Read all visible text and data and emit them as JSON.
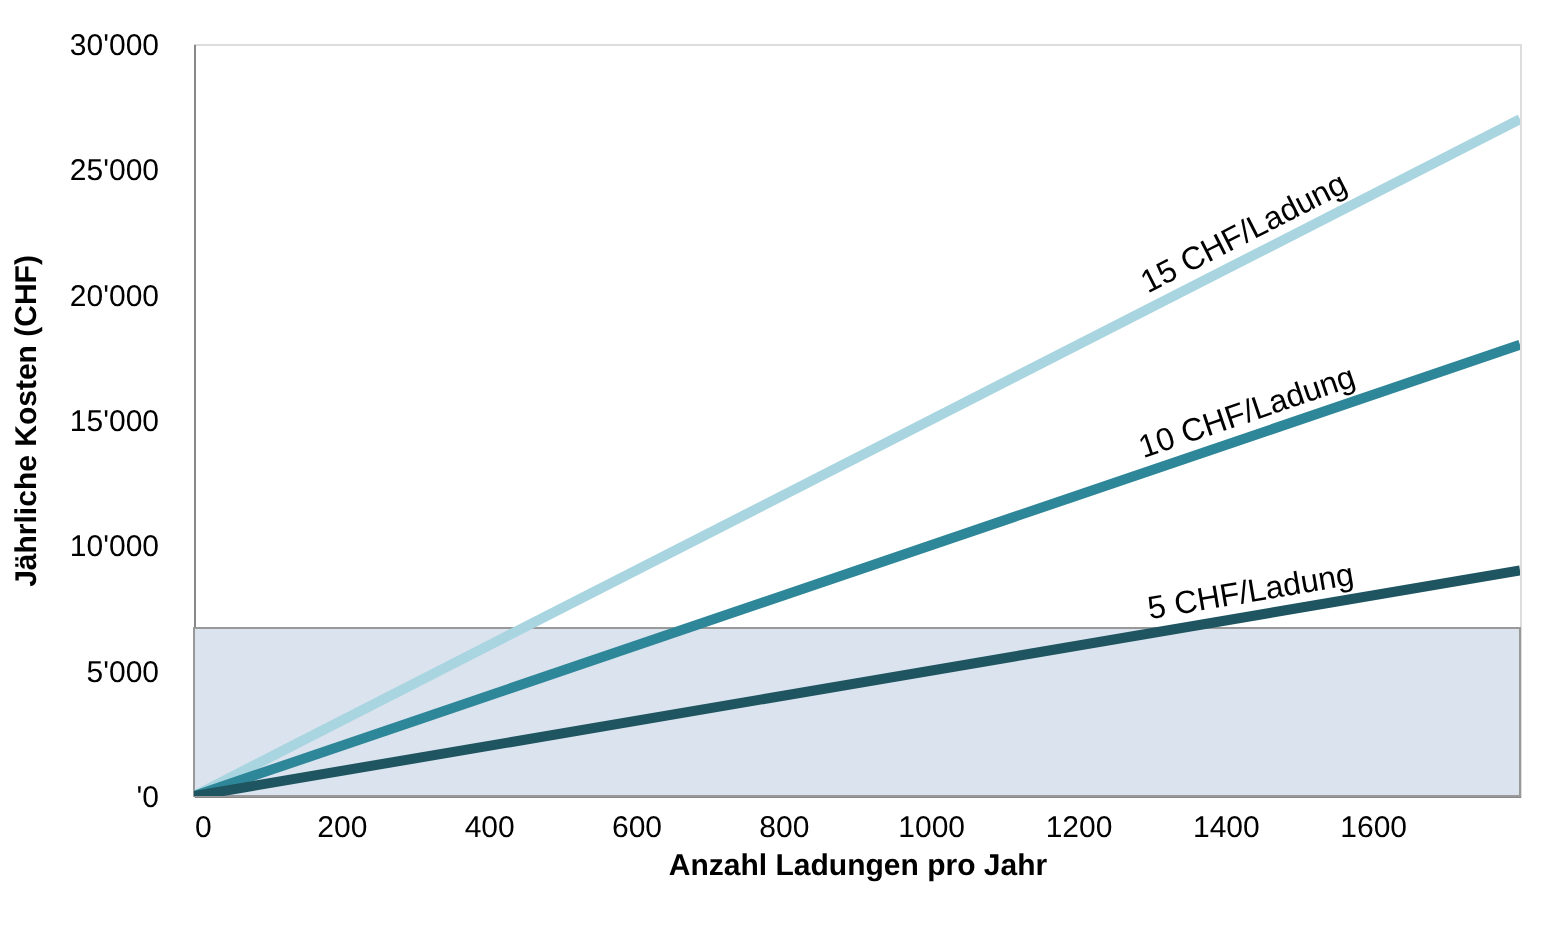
{
  "chart_data": {
    "type": "line",
    "xlabel": "Anzahl Ladungen pro Jahr",
    "ylabel": "Jährliche Kosten (CHF)",
    "xlim": [
      0,
      1800
    ],
    "xticks": [
      0,
      200,
      400,
      600,
      800,
      1000,
      1200,
      1400,
      1600
    ],
    "ylim": [
      0,
      30000
    ],
    "yticks": [
      {
        "value": 0,
        "label": "'0"
      },
      {
        "value": 5000,
        "label": "5'000"
      },
      {
        "value": 10000,
        "label": "10'000"
      },
      {
        "value": 15000,
        "label": "15'000"
      },
      {
        "value": 20000,
        "label": "20'000"
      },
      {
        "value": 25000,
        "label": "25'000"
      },
      {
        "value": 30000,
        "label": "30'000"
      }
    ],
    "grid": false,
    "legend": false,
    "line_style": "solid",
    "marker": "none",
    "bands": [
      {
        "axis": "y",
        "from": 0,
        "to": 6700,
        "color": "#dbe3ee"
      }
    ],
    "x": [
      0,
      1800
    ],
    "series": [
      {
        "name": "15 CHF/Ladung",
        "color": "#a8d5e0",
        "values": [
          0,
          27000
        ]
      },
      {
        "name": "10 CHF/Ladung",
        "color": "#2e8798",
        "values": [
          0,
          18000
        ]
      },
      {
        "name": "5 CHF/Ladung",
        "color": "#1e5560",
        "values": [
          0,
          9000
        ]
      }
    ]
  }
}
